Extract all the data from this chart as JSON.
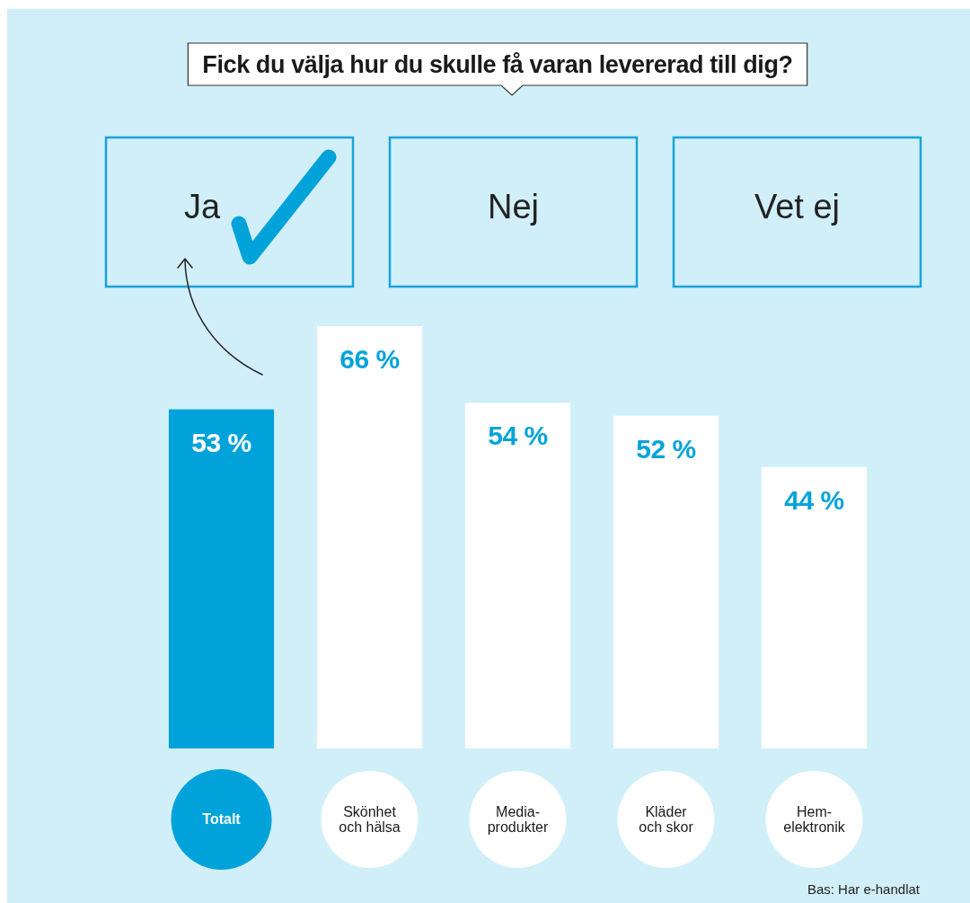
{
  "chart_data": {
    "type": "bar",
    "title": "Fick du välja hur du skulle få varan levererad till dig?",
    "categories": [
      "Totalt",
      "Skönhet och hälsa",
      "Media-produkter",
      "Kläder och skor",
      "Hem-elektronik"
    ],
    "values": [
      53,
      66,
      54,
      52,
      44
    ],
    "colors": [
      "#00a3d9",
      "#ffffff",
      "#ffffff",
      "#ffffff",
      "#ffffff"
    ],
    "value_labels": [
      "53 %",
      "66 %",
      "54 %",
      "52 %",
      "44 %"
    ],
    "annotations": [
      "Ja",
      "Nej",
      "Vet ej",
      "Bas: Har e-handlat"
    ]
  }
}
